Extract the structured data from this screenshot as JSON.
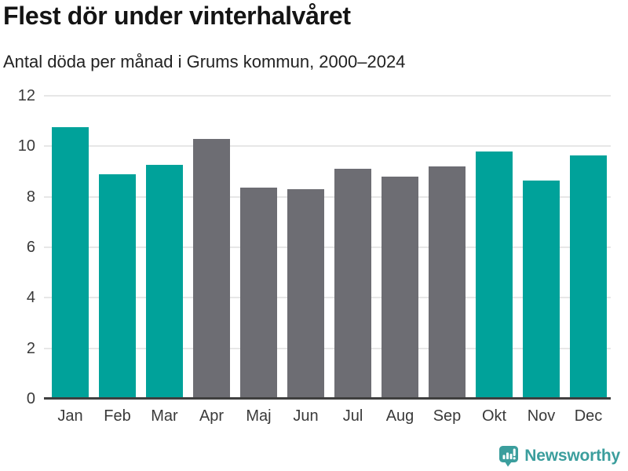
{
  "header": {
    "title": "Flest dör under vinterhalvåret",
    "subtitle": "Antal döda per månad i Grums kommun, 2000–2024"
  },
  "chart_data": {
    "type": "bar",
    "title": "Flest dör under vinterhalvåret",
    "subtitle": "Antal döda per månad i Grums kommun, 2000–2024",
    "categories": [
      "Jan",
      "Feb",
      "Mar",
      "Apr",
      "Maj",
      "Jun",
      "Jul",
      "Aug",
      "Sep",
      "Okt",
      "Nov",
      "Dec"
    ],
    "values": [
      10.75,
      8.9,
      9.25,
      10.3,
      8.35,
      8.3,
      9.1,
      8.8,
      9.2,
      9.8,
      8.65,
      9.65
    ],
    "highlighted": [
      true,
      true,
      true,
      false,
      false,
      false,
      false,
      false,
      false,
      true,
      true,
      true
    ],
    "xlabel": "",
    "ylabel": "",
    "ylim": [
      0,
      12
    ],
    "yticks": [
      0,
      2,
      4,
      6,
      8,
      10,
      12
    ],
    "grid": true,
    "legend": "none",
    "colors": {
      "highlight_bar": "#00a29a",
      "default_bar": "#6d6d73",
      "gridline": "#e7e7e7",
      "axis": "#3f3f3f",
      "tick_text": "#3a3a3a"
    }
  },
  "footer": {
    "brand": "Newsworthy",
    "brand_color": "#3b9e9d",
    "logo_icon": "newsworthy-speech-bubble-bar-chart-icon"
  }
}
